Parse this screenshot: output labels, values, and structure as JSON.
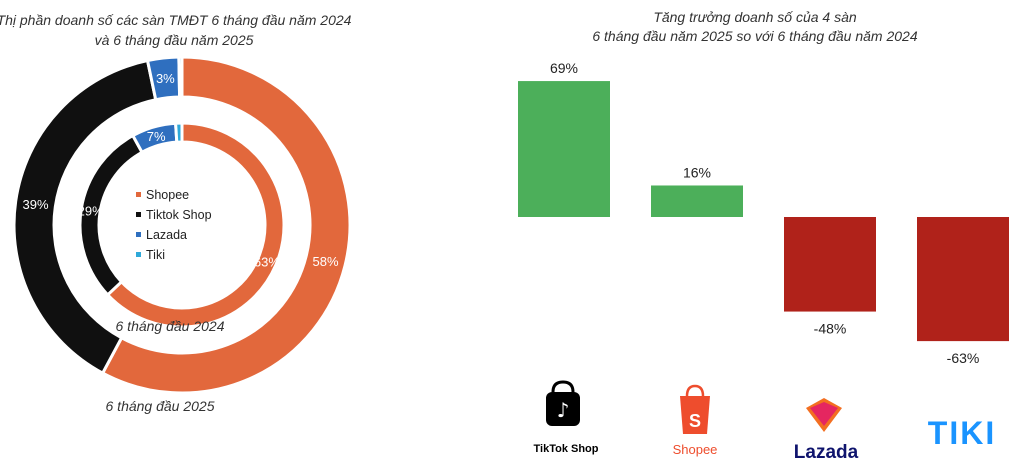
{
  "colors": {
    "shopee": "#E2683C",
    "tiktok": "#101010",
    "lazada": "#2F6FBF",
    "tiki": "#2FA9D9",
    "positive": "#4CAF5A",
    "negative": "#B0221A"
  },
  "chart_data": [
    {
      "type": "pie",
      "title": "Thị phần doanh số các sàn TMĐT 6 tháng đầu năm 2024 và 6 tháng đầu năm 2025",
      "title_lines": [
        "Thị phần doanh số các sàn TMĐT 6 tháng đầu năm 2024",
        "và 6 tháng đầu năm 2025"
      ],
      "legend": [
        "Shopee",
        "Tiktok Shop",
        "Lazada",
        "Tiki"
      ],
      "legend_position": "center",
      "series": [
        {
          "name": "6 tháng đầu 2024",
          "slices": [
            {
              "label": "Shopee",
              "value": 63,
              "text": "63%"
            },
            {
              "label": "Tiktok Shop",
              "value": 29,
              "text": "29%"
            },
            {
              "label": "Lazada",
              "value": 7,
              "text": "7%"
            },
            {
              "label": "Tiki",
              "value": 1,
              "text": ""
            }
          ]
        },
        {
          "name": "6 tháng đầu 2025",
          "slices": [
            {
              "label": "Shopee",
              "value": 58,
              "text": "58%"
            },
            {
              "label": "Tiktok Shop",
              "value": 39,
              "text": "39%"
            },
            {
              "label": "Lazada",
              "value": 3,
              "text": "3%"
            },
            {
              "label": "Tiki",
              "value": 0.3,
              "text": ""
            }
          ]
        }
      ]
    },
    {
      "type": "bar",
      "title": "Tăng trưởng doanh số của 4 sàn 6 tháng đầu năm 2025 so với 6 tháng đầu năm 2024",
      "title_lines": [
        "Tăng trưởng doanh số của 4 sàn",
        "6 tháng đầu năm 2025 so với 6 tháng đầu năm 2024"
      ],
      "categories": [
        "TikTok Shop",
        "Shopee",
        "Lazada",
        "Tiki"
      ],
      "values": [
        69,
        16,
        -48,
        -63
      ],
      "value_labels": [
        "69%",
        "16%",
        "-48%",
        "-63%"
      ],
      "ylim": [
        -63,
        69
      ],
      "grid": false,
      "logos": [
        {
          "name": "tiktok-shop-logo",
          "text": "TikTok Shop"
        },
        {
          "name": "shopee-logo",
          "text": "Shopee"
        },
        {
          "name": "lazada-logo",
          "text": "Lazada"
        },
        {
          "name": "tiki-logo",
          "text": "TIKI"
        }
      ]
    }
  ]
}
